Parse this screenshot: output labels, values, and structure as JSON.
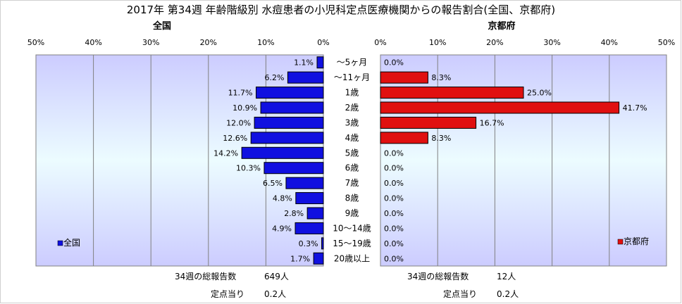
{
  "chart_data": {
    "type": "bar",
    "title": "2017年 第34週 年齢階級別 水痘患者の小児科定点医療機関からの報告割合(全国、京都府)",
    "categories": [
      "～5ヶ月",
      "～11ヶ月",
      "1歳",
      "2歳",
      "3歳",
      "4歳",
      "5歳",
      "6歳",
      "7歳",
      "8歳",
      "9歳",
      "10～14歳",
      "15～19歳",
      "20歳以上"
    ],
    "xlim": [
      0,
      50
    ],
    "x_ticks": [
      "0%",
      "10%",
      "20%",
      "30%",
      "40%",
      "50%"
    ],
    "grid": true,
    "panels": [
      {
        "title": "全国",
        "legend": "全国",
        "legend_position": "bottom-left",
        "direction": "leftward",
        "color": "#1010e0",
        "values": [
          1.1,
          6.2,
          11.7,
          10.9,
          12.0,
          12.6,
          14.2,
          10.3,
          6.5,
          4.8,
          2.8,
          4.9,
          0.3,
          1.7
        ],
        "labels": [
          "1.1%",
          "6.2%",
          "11.7%",
          "10.9%",
          "12.0%",
          "12.6%",
          "14.2%",
          "10.3%",
          "6.5%",
          "4.8%",
          "2.8%",
          "4.9%",
          "0.3%",
          "1.7%"
        ]
      },
      {
        "title": "京都府",
        "legend": "京都府",
        "legend_position": "bottom-right",
        "direction": "rightward",
        "color": "#e01010",
        "values": [
          0.0,
          8.3,
          25.0,
          41.7,
          16.7,
          8.3,
          0.0,
          0.0,
          0.0,
          0.0,
          0.0,
          0.0,
          0.0,
          0.0
        ],
        "labels": [
          "0.0%",
          "8.3%",
          "25.0%",
          "41.7%",
          "16.7%",
          "8.3%",
          "0.0%",
          "0.0%",
          "0.0%",
          "0.0%",
          "0.0%",
          "0.0%",
          "0.0%",
          "0.0%"
        ]
      }
    ]
  },
  "footer": {
    "left": {
      "reports_label": "34週の総報告数",
      "reports_value": "649人",
      "per_point_label": "定点当り",
      "per_point_value": "0.2人"
    },
    "right": {
      "reports_label": "34週の総報告数",
      "reports_value": "12人",
      "per_point_label": "定点当り",
      "per_point_value": "0.2人"
    }
  }
}
